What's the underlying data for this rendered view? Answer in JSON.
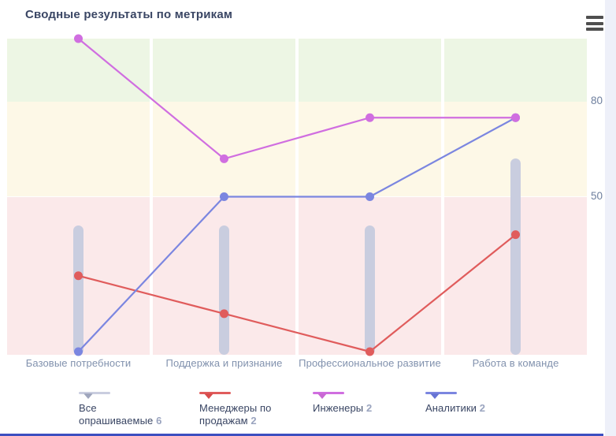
{
  "header": {
    "title": "Сводные результаты по метрикам"
  },
  "accents": {
    "bottom_line_color": "#3d4fc0",
    "title_color": "#3a4664",
    "axis_label_color": "#8292ae",
    "tick_label_color": "#6e7f9e"
  },
  "chart_data": {
    "type": "line",
    "title": "Сводные результаты по метрикам",
    "categories": [
      "Базовые потребности",
      "Поддержка и признание",
      "Профессиональное развитие",
      "Работа в команде"
    ],
    "ylim": [
      0,
      100
    ],
    "y_ticks": [
      80,
      50
    ],
    "grid": false,
    "legend_position": "bottom",
    "zones": [
      {
        "from": 80,
        "to": 100,
        "color": "#edf6e4"
      },
      {
        "from": 50,
        "to": 80,
        "color": "#fdf8e7"
      },
      {
        "from": 0,
        "to": 50,
        "color": "#fbe9ea"
      }
    ],
    "series": [
      {
        "name": "Все опрашиваемые",
        "count": "6",
        "type": "bar",
        "color": "#c9cddf",
        "marker_color": "#9fa6bd",
        "values": [
          41,
          41,
          41,
          62
        ]
      },
      {
        "name": "Менеджеры по продажам",
        "count": "2",
        "type": "line",
        "color": "#e05c5c",
        "marker_color": "#d74c4c",
        "values": [
          25,
          13,
          1,
          38
        ]
      },
      {
        "name": "Инженеры",
        "count": "2",
        "type": "line",
        "color": "#d06ee0",
        "marker_color": "#c968d4",
        "values": [
          100,
          62,
          75,
          75
        ]
      },
      {
        "name": "Аналитики",
        "count": "2",
        "type": "line",
        "color": "#7b86e0",
        "marker_color": "#6673d4",
        "values": [
          1,
          50,
          50,
          75
        ]
      }
    ]
  }
}
